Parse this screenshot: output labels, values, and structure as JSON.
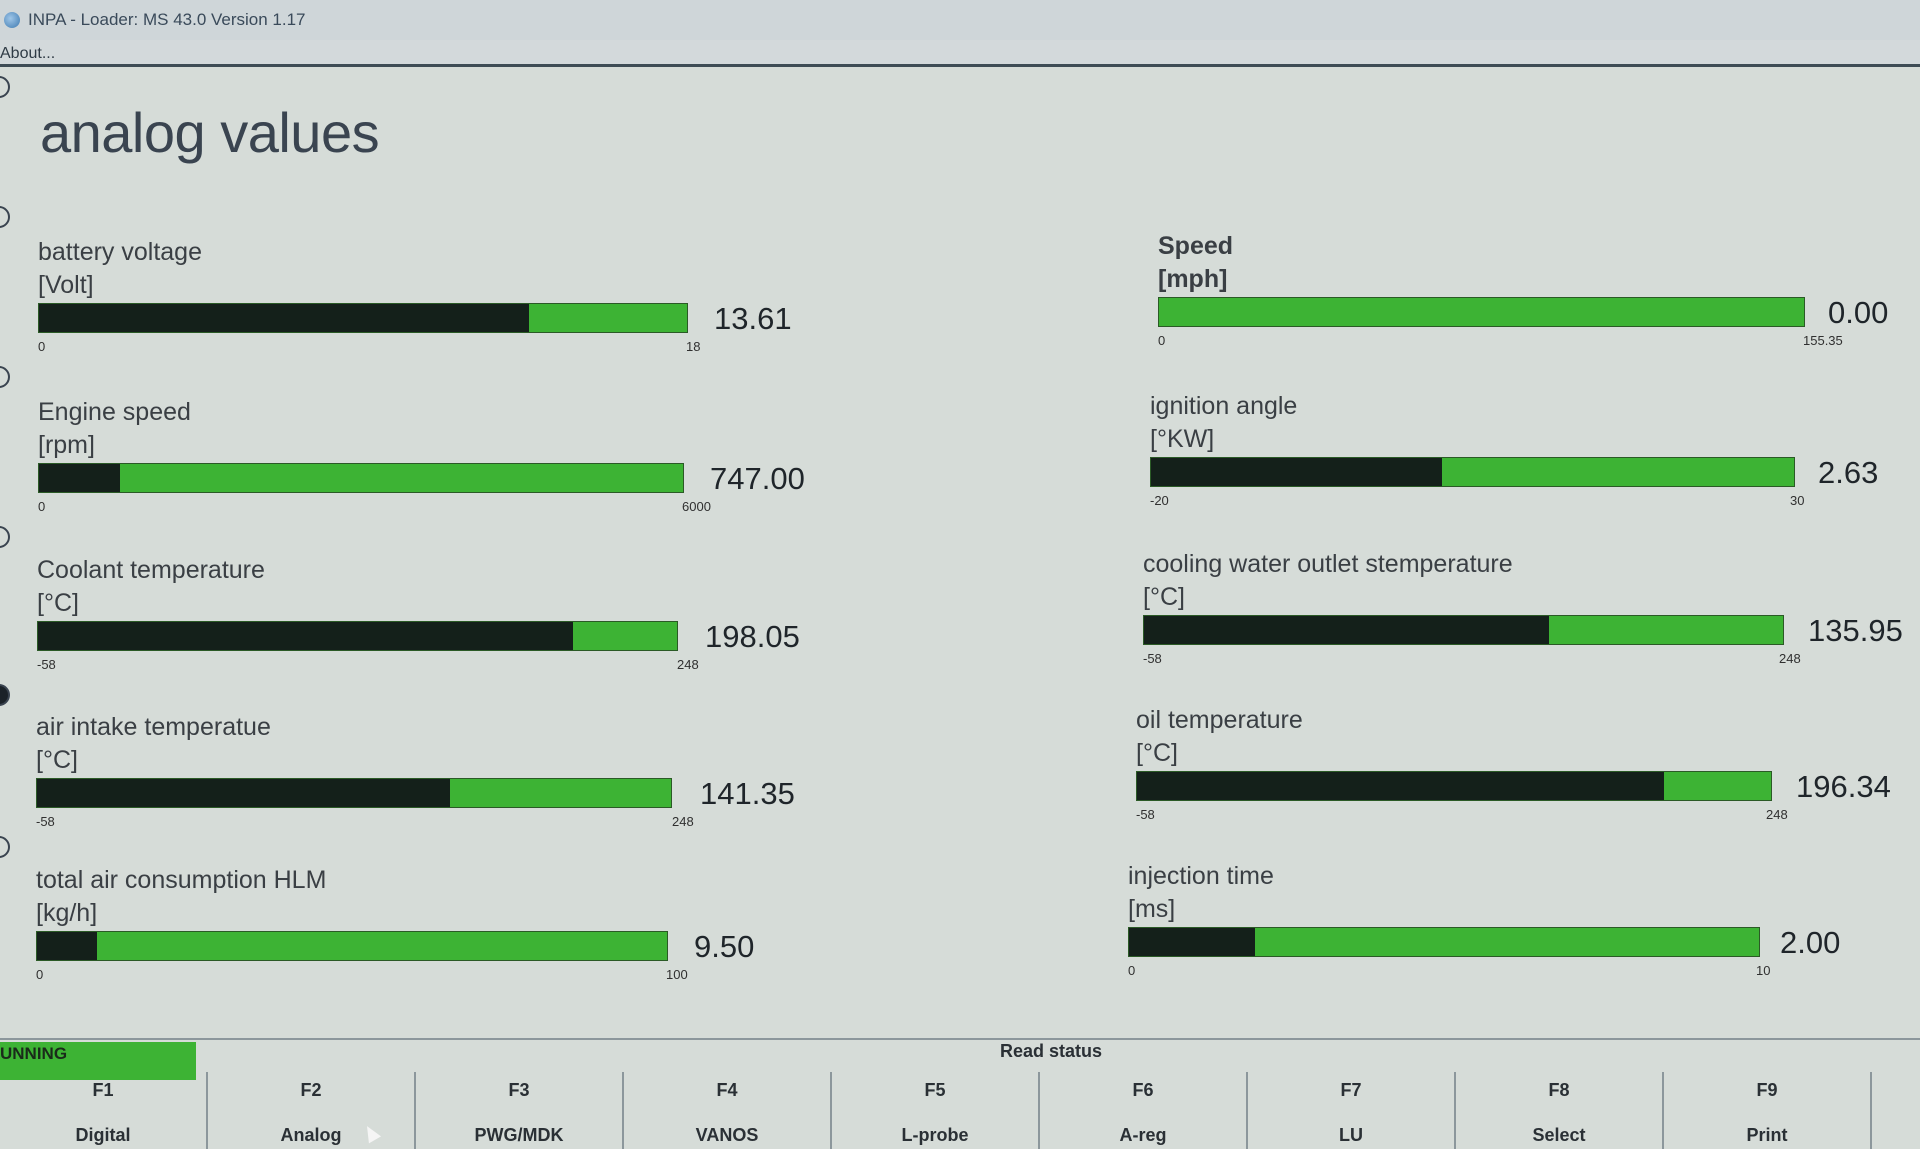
{
  "window": {
    "title": "INPA - Loader:  MS 43.0 Version 1.17",
    "menu_about": "About..."
  },
  "page": {
    "title": "analog values"
  },
  "gauges": [
    {
      "label": "battery voltage",
      "unit": "[Volt]",
      "value": "13.61",
      "min": "0",
      "max": "18",
      "fill_fraction": 0.756
    },
    {
      "label": "Engine speed",
      "unit": "[rpm]",
      "value": "747.00",
      "min": "0",
      "max": "6000",
      "fill_fraction": 0.125
    },
    {
      "label": "Coolant temperature",
      "unit": "[°C]",
      "value": "198.05",
      "min": "-58",
      "max": "248",
      "fill_fraction": 0.837
    },
    {
      "label": "air intake temperatue",
      "unit": "[°C]",
      "value": "141.35",
      "min": "-58",
      "max": "248",
      "fill_fraction": 0.651
    },
    {
      "label": "total air consumption HLM",
      "unit": "[kg/h]",
      "value": "9.50",
      "min": "0",
      "max": "100",
      "fill_fraction": 0.095
    },
    {
      "label": "Speed",
      "unit": "[mph]",
      "value": "0.00",
      "min": "0",
      "max": "155.35",
      "fill_fraction": 0.0
    },
    {
      "label": "ignition angle",
      "unit": "[°KW]",
      "value": "2.63",
      "min": "-20",
      "max": "30",
      "fill_fraction": 0.453
    },
    {
      "label": "cooling water outlet stemperature",
      "unit": "[°C]",
      "value": "135.95",
      "min": "-58",
      "max": "248",
      "fill_fraction": 0.634
    },
    {
      "label": "oil temperature",
      "unit": "[°C]",
      "value": "196.34",
      "min": "-58",
      "max": "248",
      "fill_fraction": 0.831
    },
    {
      "label": "injection time",
      "unit": "[ms]",
      "value": "2.00",
      "min": "0",
      "max": "10",
      "fill_fraction": 0.2
    }
  ],
  "status": {
    "running": "UNNING",
    "read_status": "Read status"
  },
  "function_keys": [
    {
      "key": "F1",
      "label": "Digital"
    },
    {
      "key": "F2",
      "label": "Analog"
    },
    {
      "key": "F3",
      "label": "PWG/MDK"
    },
    {
      "key": "F4",
      "label": "VANOS"
    },
    {
      "key": "F5",
      "label": "L-probe"
    },
    {
      "key": "F6",
      "label": "A-reg"
    },
    {
      "key": "F7",
      "label": "LU"
    },
    {
      "key": "F8",
      "label": "Select"
    },
    {
      "key": "F9",
      "label": "Print"
    }
  ]
}
